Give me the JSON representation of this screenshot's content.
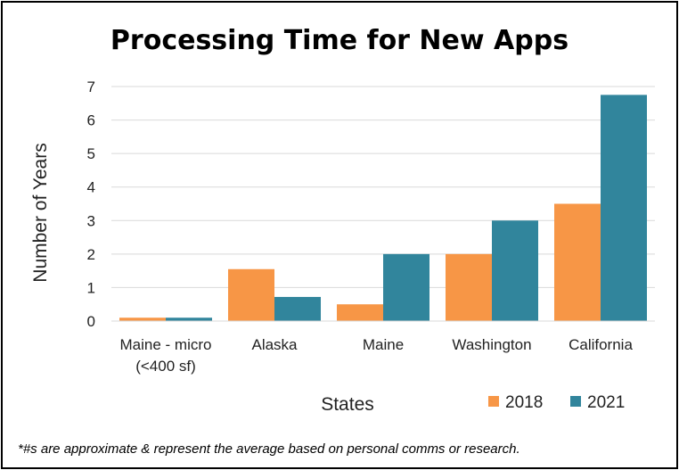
{
  "chart_data": {
    "type": "bar",
    "title": "Processing Time for New Apps",
    "xlabel": "States",
    "ylabel": "Number of Years",
    "categories": [
      [
        "Maine - micro",
        "(<400 sf)"
      ],
      [
        "Alaska"
      ],
      [
        "Maine"
      ],
      [
        "Washington"
      ],
      [
        "California"
      ]
    ],
    "series": [
      {
        "name": "2018",
        "color": "#F79646",
        "values": [
          0.1,
          1.55,
          0.5,
          2.0,
          3.5
        ]
      },
      {
        "name": "2021",
        "color": "#31859C",
        "values": [
          0.1,
          0.72,
          2.0,
          3.0,
          6.75
        ]
      }
    ],
    "ylim": [
      0,
      7
    ],
    "yticks": [
      0,
      1,
      2,
      3,
      4,
      5,
      6,
      7
    ],
    "grid": true,
    "legend": "bottom-right"
  },
  "footnote": "*#s are approximate & represent the average based on personal comms or research."
}
